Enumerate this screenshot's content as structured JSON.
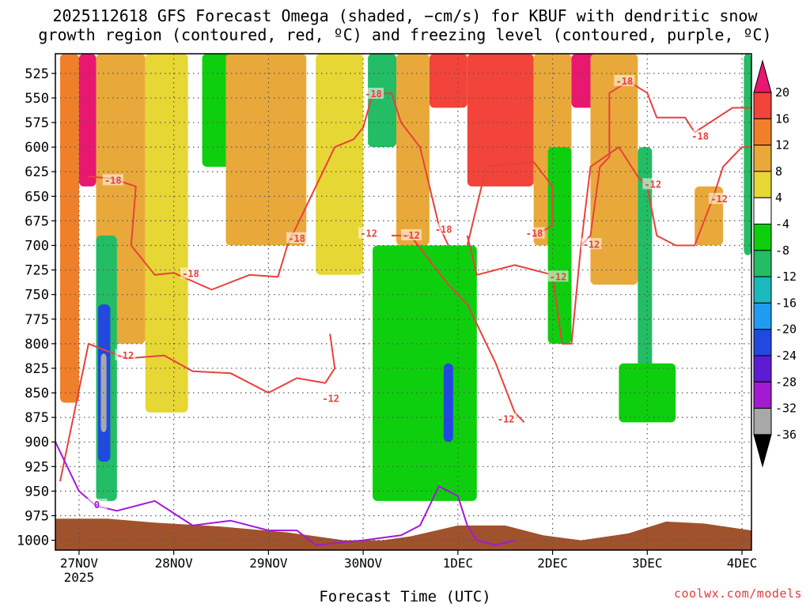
{
  "header": {
    "line1": "2025112618 GFS Forecast Omega (shaded, −cm/s) for KBUF with dendritic snow",
    "line2": "growth region (contoured, red, ºC) and freezing level (contoured, purple, ºC)"
  },
  "footer": {
    "xlabel": "Forecast Time (UTC)",
    "credit": "coolwx.com/models"
  },
  "chart_data": {
    "type": "heatmap",
    "title": "2025112618 GFS Forecast Omega (shaded, −cm/s) for KBUF with dendritic snow growth region (contoured, red, ºC) and freezing level (contoured, purple, ºC)",
    "xlabel": "Forecast Time (UTC)",
    "ylabel": "",
    "y_axis": {
      "ticks": [
        525,
        550,
        575,
        600,
        625,
        650,
        675,
        700,
        725,
        750,
        775,
        800,
        825,
        850,
        875,
        900,
        925,
        950,
        975,
        1000
      ],
      "range": [
        1010,
        505
      ]
    },
    "x_axis": {
      "tick_labels": [
        "27NOV",
        "28NOV",
        "29NOV",
        "30NOV",
        "1DEC",
        "2DEC",
        "3DEC",
        "4DEC"
      ],
      "sub_label": "2025",
      "range_days": [
        -0.25,
        7.1
      ]
    },
    "grid": true,
    "colorbar": {
      "levels": [
        20,
        16,
        12,
        8,
        4,
        -4,
        -8,
        -12,
        -16,
        -20,
        -24,
        -28,
        -32,
        -36
      ],
      "colors": [
        "#e8176f",
        "#f2443a",
        "#f07f2a",
        "#e9a93a",
        "#e6d734",
        "#ffffff",
        "#0ecf0e",
        "#22bd64",
        "#1bb8bd",
        "#219bf0",
        "#2149e0",
        "#5d1bd4",
        "#a31ad1",
        "#a8a8a8",
        "#000000"
      ]
    },
    "omega_regions": [
      {
        "day_range": [
          -0.2,
          0.0
        ],
        "p_range": [
          505,
          860
        ],
        "level": 12
      },
      {
        "day_range": [
          0.0,
          0.18
        ],
        "p_range": [
          505,
          640
        ],
        "level": 20
      },
      {
        "day_range": [
          0.18,
          0.7
        ],
        "p_range": [
          505,
          800
        ],
        "level": 8
      },
      {
        "day_range": [
          0.18,
          0.4
        ],
        "p_range": [
          690,
          960
        ],
        "level": -12
      },
      {
        "day_range": [
          0.2,
          0.33
        ],
        "p_range": [
          760,
          920
        ],
        "level": -24
      },
      {
        "day_range": [
          0.23,
          0.29
        ],
        "p_range": [
          810,
          890
        ],
        "level": -36
      },
      {
        "day_range": [
          0.7,
          1.15
        ],
        "p_range": [
          505,
          870
        ],
        "level": 4
      },
      {
        "day_range": [
          1.3,
          1.75
        ],
        "p_range": [
          505,
          620
        ],
        "level": -8
      },
      {
        "day_range": [
          1.75,
          2.1
        ],
        "p_range": [
          505,
          560
        ],
        "level": 20
      },
      {
        "day_range": [
          1.55,
          2.4
        ],
        "p_range": [
          505,
          700
        ],
        "level": 8
      },
      {
        "day_range": [
          2.5,
          3.0
        ],
        "p_range": [
          505,
          730
        ],
        "level": 4
      },
      {
        "day_range": [
          3.05,
          3.35
        ],
        "p_range": [
          505,
          600
        ],
        "level": -12
      },
      {
        "day_range": [
          3.35,
          3.7
        ],
        "p_range": [
          505,
          700
        ],
        "level": 8
      },
      {
        "day_range": [
          3.7,
          4.1
        ],
        "p_range": [
          505,
          560
        ],
        "level": 16
      },
      {
        "day_range": [
          3.1,
          4.2
        ],
        "p_range": [
          700,
          960
        ],
        "level": -8
      },
      {
        "day_range": [
          3.85,
          3.95
        ],
        "p_range": [
          820,
          900
        ],
        "level": -24
      },
      {
        "day_range": [
          4.1,
          4.8
        ],
        "p_range": [
          505,
          640
        ],
        "level": 16
      },
      {
        "day_range": [
          4.8,
          5.2
        ],
        "p_range": [
          505,
          700
        ],
        "level": 8
      },
      {
        "day_range": [
          4.95,
          5.2
        ],
        "p_range": [
          600,
          800
        ],
        "level": -8
      },
      {
        "day_range": [
          5.2,
          5.5
        ],
        "p_range": [
          505,
          560
        ],
        "level": 20
      },
      {
        "day_range": [
          5.4,
          5.9
        ],
        "p_range": [
          505,
          740
        ],
        "level": 8
      },
      {
        "day_range": [
          5.9,
          6.05
        ],
        "p_range": [
          600,
          880
        ],
        "level": -12
      },
      {
        "day_range": [
          6.5,
          6.8
        ],
        "p_range": [
          640,
          700
        ],
        "level": 8
      },
      {
        "day_range": [
          5.7,
          6.3
        ],
        "p_range": [
          820,
          880
        ],
        "level": -8
      },
      {
        "day_range": [
          7.02,
          7.1
        ],
        "p_range": [
          505,
          710
        ],
        "level": -12
      }
    ],
    "contours": [
      {
        "name": "dendritic growth region",
        "units": "ºC",
        "color": "#e8413c",
        "labels": [
          {
            "text": "-18",
            "day": 0.35,
            "p": 634
          },
          {
            "text": "-18",
            "day": 1.17,
            "p": 729
          },
          {
            "text": "-18",
            "day": 2.29,
            "p": 693
          },
          {
            "text": "-18",
            "day": 3.1,
            "p": 546
          },
          {
            "text": "-18",
            "day": 3.84,
            "p": 684
          },
          {
            "text": "-18",
            "day": 4.8,
            "p": 688
          },
          {
            "text": "-18",
            "day": 5.75,
            "p": 533
          },
          {
            "text": "-18",
            "day": 6.55,
            "p": 589
          },
          {
            "text": "-12",
            "day": 0.48,
            "p": 812
          },
          {
            "text": "-12",
            "day": 2.65,
            "p": 856
          },
          {
            "text": "-12",
            "day": 3.05,
            "p": 688
          },
          {
            "text": "-12",
            "day": 3.5,
            "p": 690
          },
          {
            "text": "-12",
            "day": 4.5,
            "p": 877
          },
          {
            "text": "-12",
            "day": 5.05,
            "p": 732
          },
          {
            "text": "-12",
            "day": 5.4,
            "p": 699
          },
          {
            "text": "-12",
            "day": 6.05,
            "p": 638
          },
          {
            "text": "-12",
            "day": 6.75,
            "p": 653
          }
        ]
      },
      {
        "name": "freezing level",
        "units": "ºC",
        "color": "#a318d8",
        "labels": [
          {
            "text": "0",
            "day": 0.18,
            "p": 964
          }
        ]
      }
    ]
  }
}
